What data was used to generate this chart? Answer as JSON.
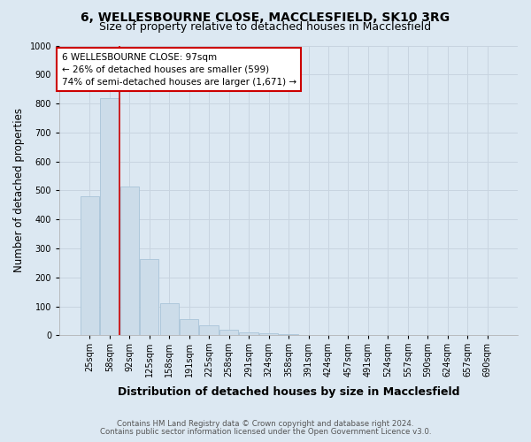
{
  "title_line1": "6, WELLESBOURNE CLOSE, MACCLESFIELD, SK10 3RG",
  "title_line2": "Size of property relative to detached houses in Macclesfield",
  "xlabel": "Distribution of detached houses by size in Macclesfield",
  "ylabel": "Number of detached properties",
  "footnote1": "Contains HM Land Registry data © Crown copyright and database right 2024.",
  "footnote2": "Contains public sector information licensed under the Open Government Licence v3.0.",
  "bar_labels": [
    "25sqm",
    "58sqm",
    "92sqm",
    "125sqm",
    "158sqm",
    "191sqm",
    "225sqm",
    "258sqm",
    "291sqm",
    "324sqm",
    "358sqm",
    "391sqm",
    "424sqm",
    "457sqm",
    "491sqm",
    "524sqm",
    "557sqm",
    "590sqm",
    "624sqm",
    "657sqm",
    "690sqm"
  ],
  "bar_values": [
    480,
    820,
    515,
    263,
    110,
    55,
    35,
    20,
    12,
    7,
    4,
    0,
    0,
    0,
    0,
    0,
    0,
    0,
    0,
    0,
    0
  ],
  "bar_color": "#ccdce9",
  "bar_edge_color": "#a8c4d8",
  "annotation_text": "6 WELLESBOURNE CLOSE: 97sqm\n← 26% of detached houses are smaller (599)\n74% of semi-detached houses are larger (1,671) →",
  "vline_x": 1.5,
  "vline_color": "#cc0000",
  "annotation_box_edge_color": "#cc0000",
  "annotation_box_fill": "#ffffff",
  "ylim": [
    0,
    1000
  ],
  "yticks": [
    0,
    100,
    200,
    300,
    400,
    500,
    600,
    700,
    800,
    900,
    1000
  ],
  "grid_color": "#c8d4e0",
  "background_color": "#dce8f2",
  "title_fontsize": 10,
  "subtitle_fontsize": 9,
  "tick_fontsize": 7,
  "ylabel_fontsize": 8.5,
  "xlabel_fontsize": 9,
  "annotation_fontsize": 7.5,
  "footnote_fontsize": 6.2
}
